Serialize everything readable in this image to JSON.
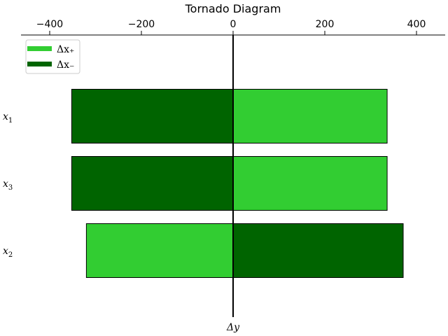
{
  "chart_data": {
    "type": "bar",
    "orientation": "horizontal",
    "title": "Tornado Diagram",
    "xlabel": "Δy",
    "xlim": [
      -460,
      465
    ],
    "xticks": [
      -400,
      -200,
      0,
      200,
      400
    ],
    "xtick_labels": [
      "−400",
      "−200",
      "0",
      "200",
      "400"
    ],
    "x_axis_position": "top",
    "grid": false,
    "legend": {
      "placement": "top-left",
      "entries": [
        {
          "label": "Δx₊",
          "color": "#32CD32"
        },
        {
          "label": "Δx₋",
          "color": "#006400"
        }
      ]
    },
    "categories": [
      "x1",
      "x3",
      "x2"
    ],
    "category_labels": [
      {
        "base": "x",
        "sub": "1"
      },
      {
        "base": "x",
        "sub": "3"
      },
      {
        "base": "x",
        "sub": "2"
      }
    ],
    "bars": [
      {
        "category": "x1",
        "segments": [
          {
            "series": "Δx₋",
            "from": -352,
            "to": 0,
            "color": "#006400"
          },
          {
            "series": "Δx₊",
            "from": 0,
            "to": 336,
            "color": "#32CD32"
          }
        ]
      },
      {
        "category": "x3",
        "segments": [
          {
            "series": "Δx₋",
            "from": -352,
            "to": 0,
            "color": "#006400"
          },
          {
            "series": "Δx₊",
            "from": 0,
            "to": 336,
            "color": "#32CD32"
          }
        ]
      },
      {
        "category": "x2",
        "segments": [
          {
            "series": "Δx₊",
            "from": -320,
            "to": 0,
            "color": "#32CD32"
          },
          {
            "series": "Δx₋",
            "from": 0,
            "to": 371,
            "color": "#006400"
          }
        ]
      }
    ]
  }
}
